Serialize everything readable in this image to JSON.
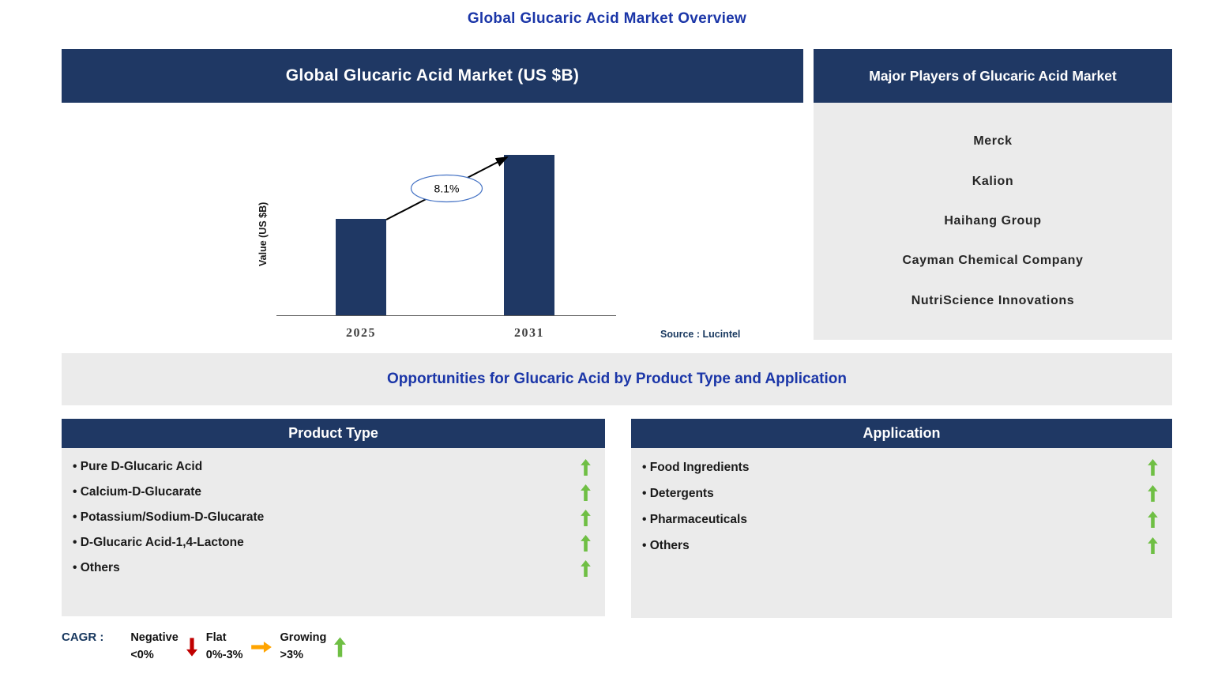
{
  "title": "Global Glucaric Acid Market Overview",
  "colors": {
    "navy_header": "#1F3864",
    "accent_blue": "#1B36A8",
    "panel_gray": "#EBEBEB",
    "bar_navy": "#1F3864",
    "growing_green": "#6FBF44",
    "negative_red": "#C00000",
    "flat_orange": "#FFA400"
  },
  "chart_panel": {
    "title": "Global Glucaric Acid Market (US $B)",
    "source": "Source : Lucintel"
  },
  "chart_data": {
    "type": "bar",
    "title": "Global Glucaric Acid Market (US $B)",
    "ylabel": "Value (US $B)",
    "xlabel": "",
    "categories": [
      "2025",
      "2031"
    ],
    "values": [
      0.6,
      1.0
    ],
    "annotation": "8.1%",
    "grid": false,
    "legend_position": "none"
  },
  "players_panel": {
    "title": "Major Players of Glucaric Acid Market",
    "items": [
      "Merck",
      "Kalion",
      "Haihang Group",
      "Cayman Chemical Company",
      "NutriScience Innovations"
    ]
  },
  "opportunities": {
    "title": "Opportunities for Glucaric Acid by Product Type and Application"
  },
  "product_type_panel": {
    "title": "Product Type",
    "items": [
      {
        "label": "Pure D-Glucaric Acid",
        "trend": "growing"
      },
      {
        "label": "Calcium-D-Glucarate",
        "trend": "growing"
      },
      {
        "label": "Potassium/Sodium-D-Glucarate",
        "trend": "growing"
      },
      {
        "label": "D-Glucaric Acid-1,4-Lactone",
        "trend": "growing"
      },
      {
        "label": "Others",
        "trend": "growing"
      }
    ]
  },
  "application_panel": {
    "title": "Application",
    "items": [
      {
        "label": "Food Ingredients",
        "trend": "growing"
      },
      {
        "label": "Detergents",
        "trend": "growing"
      },
      {
        "label": "Pharmaceuticals",
        "trend": "growing"
      },
      {
        "label": "Others",
        "trend": "growing"
      }
    ]
  },
  "legend": {
    "label": "CAGR :",
    "items": [
      {
        "name": "Negative",
        "range": "<0%",
        "direction": "down"
      },
      {
        "name": "Flat",
        "range": "0%-3%",
        "direction": "right"
      },
      {
        "name": "Growing",
        "range": ">3%",
        "direction": "up"
      }
    ]
  }
}
